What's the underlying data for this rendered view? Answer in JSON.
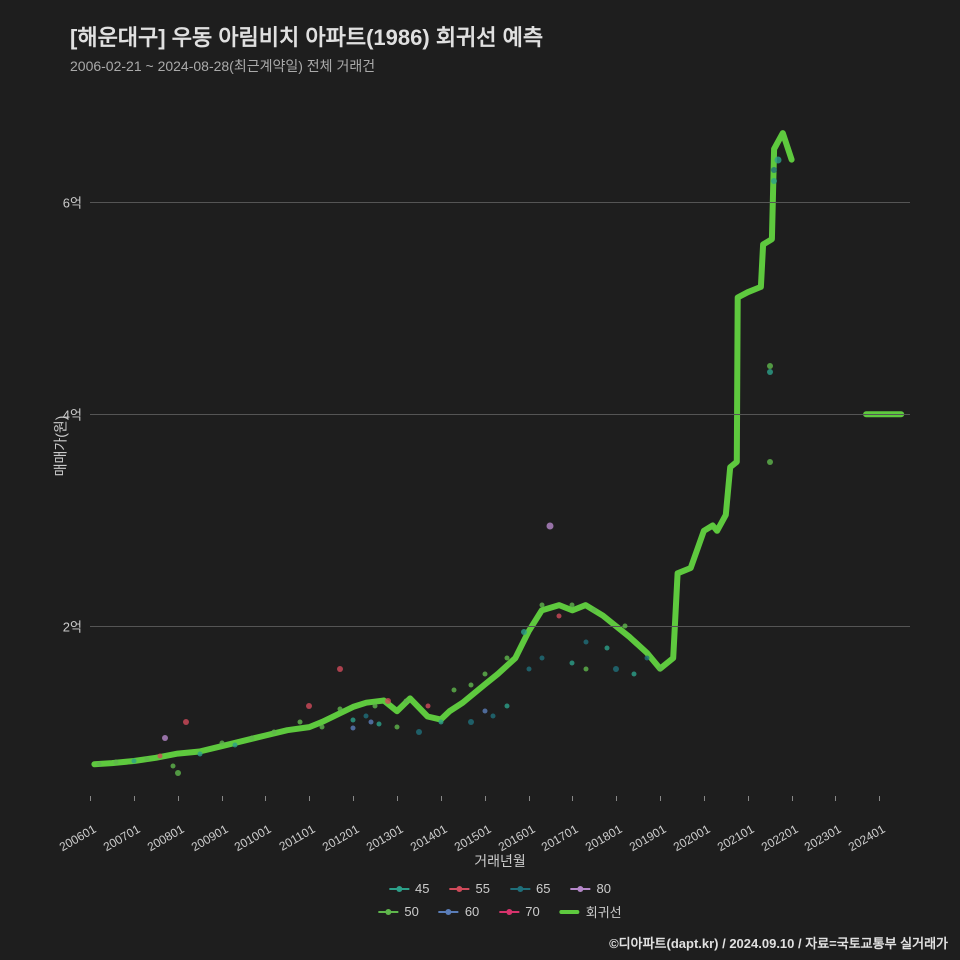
{
  "title": "[해운대구] 우동 아림비치 아파트(1986) 회귀선 예측",
  "subtitle": "2006-02-21 ~ 2024-08-28(최근계약일) 전체 거래건",
  "y_label": "매매가(원)",
  "x_label": "거래년월",
  "credit": "©디아파트(dapt.kr) / 2024.09.10 / 자료=국토교통부 실거래가",
  "background_color": "#1e1e1e",
  "grid_color": "#555555",
  "text_color": "#cccccc",
  "x_range": [
    2006.0,
    2024.7
  ],
  "y_range": [
    0.4,
    7.0
  ],
  "y_ticks": [
    {
      "value": 2,
      "label": "2억"
    },
    {
      "value": 4,
      "label": "4억"
    },
    {
      "value": 6,
      "label": "6억"
    }
  ],
  "x_ticks": [
    {
      "value": 2006.0,
      "label": "200601"
    },
    {
      "value": 2007.0,
      "label": "200701"
    },
    {
      "value": 2008.0,
      "label": "200801"
    },
    {
      "value": 2009.0,
      "label": "200901"
    },
    {
      "value": 2010.0,
      "label": "201001"
    },
    {
      "value": 2011.0,
      "label": "201101"
    },
    {
      "value": 2012.0,
      "label": "201201"
    },
    {
      "value": 2013.0,
      "label": "201301"
    },
    {
      "value": 2014.0,
      "label": "201401"
    },
    {
      "value": 2015.0,
      "label": "201501"
    },
    {
      "value": 2016.0,
      "label": "201601"
    },
    {
      "value": 2017.0,
      "label": "201701"
    },
    {
      "value": 2018.0,
      "label": "201801"
    },
    {
      "value": 2019.0,
      "label": "201901"
    },
    {
      "value": 2020.0,
      "label": "202001"
    },
    {
      "value": 2021.0,
      "label": "202101"
    },
    {
      "value": 2022.0,
      "label": "202201"
    },
    {
      "value": 2023.0,
      "label": "202301"
    },
    {
      "value": 2024.0,
      "label": "202401"
    }
  ],
  "series_colors": {
    "45": "#2ca089",
    "50": "#5fb64c",
    "55": "#d04a5a",
    "60": "#5a7db8",
    "65": "#1f6f7a",
    "70": "#d6336c",
    "80": "#b587c9",
    "regression": "#5ec93e"
  },
  "legend": {
    "rows": [
      [
        "45",
        "55",
        "65",
        "80"
      ],
      [
        "50",
        "60",
        "70",
        "회귀선"
      ]
    ]
  },
  "scatter": [
    {
      "x": 2006.2,
      "y": 0.7,
      "series": "50",
      "size": 5
    },
    {
      "x": 2006.6,
      "y": 0.72,
      "series": "50",
      "size": 5
    },
    {
      "x": 2007.0,
      "y": 0.73,
      "series": "45",
      "size": 5
    },
    {
      "x": 2007.3,
      "y": 0.75,
      "series": "50",
      "size": 5
    },
    {
      "x": 2007.6,
      "y": 0.78,
      "series": "55",
      "size": 5
    },
    {
      "x": 2007.7,
      "y": 0.95,
      "series": "80",
      "size": 6
    },
    {
      "x": 2007.9,
      "y": 0.68,
      "series": "50",
      "size": 5
    },
    {
      "x": 2008.0,
      "y": 0.62,
      "series": "50",
      "size": 6
    },
    {
      "x": 2008.2,
      "y": 1.1,
      "series": "55",
      "size": 6
    },
    {
      "x": 2008.5,
      "y": 0.8,
      "series": "45",
      "size": 5
    },
    {
      "x": 2009.0,
      "y": 0.9,
      "series": "50",
      "size": 5
    },
    {
      "x": 2009.3,
      "y": 0.88,
      "series": "45",
      "size": 5
    },
    {
      "x": 2009.7,
      "y": 0.95,
      "series": "50",
      "size": 5
    },
    {
      "x": 2010.2,
      "y": 1.0,
      "series": "50",
      "size": 5
    },
    {
      "x": 2010.8,
      "y": 1.1,
      "series": "50",
      "size": 5
    },
    {
      "x": 2011.0,
      "y": 1.25,
      "series": "55",
      "size": 6
    },
    {
      "x": 2011.3,
      "y": 1.05,
      "series": "50",
      "size": 5
    },
    {
      "x": 2011.7,
      "y": 1.22,
      "series": "50",
      "size": 5
    },
    {
      "x": 2011.7,
      "y": 1.6,
      "series": "55",
      "size": 6
    },
    {
      "x": 2012.0,
      "y": 1.04,
      "series": "60",
      "size": 5
    },
    {
      "x": 2012.0,
      "y": 1.12,
      "series": "45",
      "size": 5
    },
    {
      "x": 2012.3,
      "y": 1.15,
      "series": "65",
      "size": 5
    },
    {
      "x": 2012.4,
      "y": 1.1,
      "series": "60",
      "size": 5
    },
    {
      "x": 2012.5,
      "y": 1.25,
      "series": "50",
      "size": 5
    },
    {
      "x": 2012.6,
      "y": 1.08,
      "series": "45",
      "size": 5
    },
    {
      "x": 2012.8,
      "y": 1.3,
      "series": "55",
      "size": 6
    },
    {
      "x": 2013.0,
      "y": 1.05,
      "series": "50",
      "size": 5
    },
    {
      "x": 2013.2,
      "y": 1.3,
      "series": "50",
      "size": 5
    },
    {
      "x": 2013.5,
      "y": 1.0,
      "series": "65",
      "size": 6
    },
    {
      "x": 2013.7,
      "y": 1.25,
      "series": "55",
      "size": 5
    },
    {
      "x": 2014.0,
      "y": 1.1,
      "series": "45",
      "size": 5
    },
    {
      "x": 2014.3,
      "y": 1.4,
      "series": "50",
      "size": 5
    },
    {
      "x": 2014.7,
      "y": 1.1,
      "series": "65",
      "size": 6
    },
    {
      "x": 2014.7,
      "y": 1.45,
      "series": "50",
      "size": 5
    },
    {
      "x": 2015.0,
      "y": 1.55,
      "series": "50",
      "size": 5
    },
    {
      "x": 2015.0,
      "y": 1.2,
      "series": "60",
      "size": 5
    },
    {
      "x": 2015.2,
      "y": 1.15,
      "series": "65",
      "size": 5
    },
    {
      "x": 2015.5,
      "y": 1.7,
      "series": "50",
      "size": 5
    },
    {
      "x": 2015.5,
      "y": 1.25,
      "series": "45",
      "size": 5
    },
    {
      "x": 2015.9,
      "y": 1.95,
      "series": "45",
      "size": 6
    },
    {
      "x": 2016.0,
      "y": 1.6,
      "series": "65",
      "size": 5
    },
    {
      "x": 2016.3,
      "y": 2.2,
      "series": "50",
      "size": 5
    },
    {
      "x": 2016.3,
      "y": 1.7,
      "series": "65",
      "size": 5
    },
    {
      "x": 2016.5,
      "y": 2.95,
      "series": "80",
      "size": 7
    },
    {
      "x": 2016.7,
      "y": 2.1,
      "series": "55",
      "size": 5
    },
    {
      "x": 2017.0,
      "y": 2.2,
      "series": "50",
      "size": 5
    },
    {
      "x": 2017.0,
      "y": 1.65,
      "series": "45",
      "size": 5
    },
    {
      "x": 2017.3,
      "y": 1.85,
      "series": "65",
      "size": 5
    },
    {
      "x": 2017.3,
      "y": 1.6,
      "series": "50",
      "size": 5
    },
    {
      "x": 2017.5,
      "y": 2.15,
      "series": "50",
      "size": 5
    },
    {
      "x": 2017.8,
      "y": 1.8,
      "series": "45",
      "size": 5
    },
    {
      "x": 2018.0,
      "y": 1.6,
      "series": "65",
      "size": 6
    },
    {
      "x": 2018.2,
      "y": 2.0,
      "series": "50",
      "size": 5
    },
    {
      "x": 2018.4,
      "y": 1.55,
      "series": "45",
      "size": 5
    },
    {
      "x": 2018.7,
      "y": 1.7,
      "series": "65",
      "size": 5
    },
    {
      "x": 2019.0,
      "y": 1.6,
      "series": "50",
      "size": 5
    },
    {
      "x": 2021.5,
      "y": 4.45,
      "series": "50",
      "size": 6
    },
    {
      "x": 2021.5,
      "y": 4.4,
      "series": "45",
      "size": 6
    },
    {
      "x": 2021.5,
      "y": 3.55,
      "series": "50",
      "size": 6
    },
    {
      "x": 2021.6,
      "y": 6.3,
      "series": "65",
      "size": 6
    },
    {
      "x": 2021.6,
      "y": 6.2,
      "series": "45",
      "size": 6
    },
    {
      "x": 2021.7,
      "y": 6.4,
      "series": "45",
      "size": 7
    }
  ],
  "regression_line": {
    "color": "#5ec93e",
    "width": 6,
    "points": [
      [
        2006.1,
        0.7
      ],
      [
        2006.5,
        0.71
      ],
      [
        2007.0,
        0.73
      ],
      [
        2007.5,
        0.76
      ],
      [
        2008.0,
        0.8
      ],
      [
        2008.5,
        0.82
      ],
      [
        2009.0,
        0.87
      ],
      [
        2009.5,
        0.92
      ],
      [
        2010.0,
        0.97
      ],
      [
        2010.5,
        1.02
      ],
      [
        2011.0,
        1.05
      ],
      [
        2011.3,
        1.1
      ],
      [
        2011.7,
        1.18
      ],
      [
        2012.0,
        1.24
      ],
      [
        2012.3,
        1.28
      ],
      [
        2012.7,
        1.3
      ],
      [
        2013.0,
        1.2
      ],
      [
        2013.3,
        1.32
      ],
      [
        2013.7,
        1.15
      ],
      [
        2014.0,
        1.12
      ],
      [
        2014.2,
        1.2
      ],
      [
        2014.5,
        1.28
      ],
      [
        2015.0,
        1.45
      ],
      [
        2015.3,
        1.55
      ],
      [
        2015.7,
        1.7
      ],
      [
        2016.0,
        1.95
      ],
      [
        2016.3,
        2.15
      ],
      [
        2016.7,
        2.2
      ],
      [
        2017.0,
        2.15
      ],
      [
        2017.3,
        2.2
      ],
      [
        2017.7,
        2.1
      ],
      [
        2018.0,
        2.0
      ],
      [
        2018.3,
        1.9
      ],
      [
        2018.7,
        1.75
      ],
      [
        2019.0,
        1.6
      ],
      [
        2019.3,
        1.7
      ],
      [
        2019.4,
        2.5
      ],
      [
        2019.7,
        2.55
      ],
      [
        2020.0,
        2.9
      ],
      [
        2020.2,
        2.95
      ],
      [
        2020.3,
        2.9
      ],
      [
        2020.5,
        3.05
      ],
      [
        2020.6,
        3.5
      ],
      [
        2020.75,
        3.55
      ],
      [
        2020.77,
        5.1
      ],
      [
        2021.0,
        5.15
      ],
      [
        2021.3,
        5.2
      ],
      [
        2021.35,
        5.6
      ],
      [
        2021.55,
        5.65
      ],
      [
        2021.6,
        6.5
      ],
      [
        2021.8,
        6.65
      ],
      [
        2022.0,
        6.4
      ],
      [
        2023.7,
        4.0
      ],
      [
        2024.5,
        4.0
      ]
    ],
    "breaks": [
      52
    ]
  }
}
